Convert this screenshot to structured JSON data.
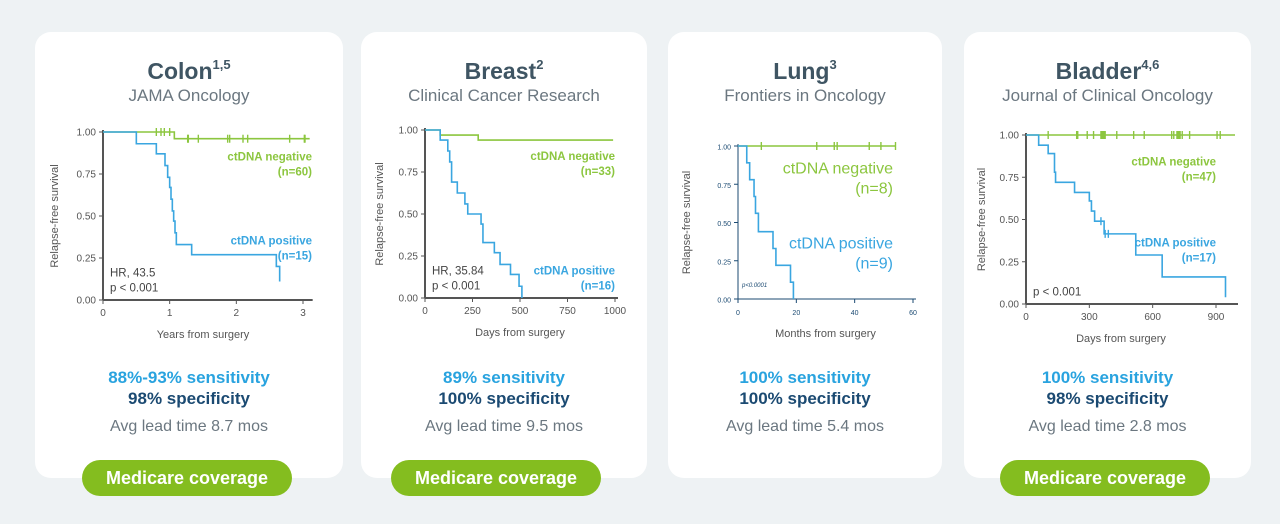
{
  "colors": {
    "negative": "#8cc63f",
    "positive": "#3aa6e0",
    "specificity": "#1b4a72",
    "badge": "#84bd1f",
    "title": "#3f5563"
  },
  "cards": [
    {
      "title": "Colon",
      "sup": "1,5",
      "journal": "JAMA Oncology",
      "sensitivity": "88%-93% sensitivity",
      "specificity": "98% specificity",
      "lead": "Avg lead time 8.7 mos",
      "badge": "Medicare coverage"
    },
    {
      "title": "Breast",
      "sup": "2",
      "journal": "Clinical Cancer Research",
      "sensitivity": "89% sensitivity",
      "specificity": "100% specificity",
      "lead": "Avg lead time 9.5 mos",
      "badge": "Medicare coverage"
    },
    {
      "title": "Lung",
      "sup": "3",
      "journal": "Frontiers in Oncology",
      "sensitivity": "100% sensitivity",
      "specificity": "100% specificity",
      "lead": "Avg lead time 5.4 mos"
    },
    {
      "title": "Bladder",
      "sup": "4,6",
      "journal": "Journal of Clinical Oncology",
      "sensitivity": "100% sensitivity",
      "specificity": "98% specificity",
      "lead": "Avg lead time 2.8 mos",
      "badge": "Medicare coverage"
    }
  ],
  "chart_data": [
    {
      "type": "line",
      "step": true,
      "xlabel": "Years from surgery",
      "ylabel": "Relapse-free survival",
      "xlim": [
        0,
        3.1
      ],
      "ylim": [
        0,
        1
      ],
      "xticks": [
        "0",
        "1",
        "2",
        "3"
      ],
      "xtick_values": [
        0,
        1,
        2,
        3
      ],
      "yticks": [
        "0.00",
        "0.25",
        "0.50",
        "0.75",
        "1.00"
      ],
      "annotation": [
        "HR, 43.5",
        "p < 0.001"
      ],
      "series": [
        {
          "name": "ctDNA negative",
          "n": "(n=60)",
          "color": "#8cc63f",
          "points": [
            [
              0,
              1
            ],
            [
              1.07,
              0.96
            ],
            [
              3.1,
              0.96
            ]
          ],
          "censored": [
            0.8,
            0.87,
            0.92,
            1.0,
            1.27,
            1.28,
            1.43,
            1.87,
            1.9,
            2.1,
            2.17,
            2.8,
            3.02,
            3.03
          ]
        },
        {
          "name": "ctDNA positive",
          "n": "(n=15)",
          "color": "#3aa6e0",
          "points": [
            [
              0,
              1
            ],
            [
              0.5,
              0.93
            ],
            [
              0.8,
              0.87
            ],
            [
              0.93,
              0.8
            ],
            [
              0.97,
              0.73
            ],
            [
              1.0,
              0.67
            ],
            [
              1.02,
              0.6
            ],
            [
              1.04,
              0.53
            ],
            [
              1.06,
              0.47
            ],
            [
              1.08,
              0.4
            ],
            [
              1.1,
              0.33
            ],
            [
              1.33,
              0.27
            ],
            [
              2.6,
              0.2
            ],
            [
              2.65,
              0.13
            ],
            [
              2.65,
              0.11
            ]
          ],
          "censored": []
        }
      ]
    },
    {
      "type": "line",
      "step": true,
      "xlabel": "Days from surgery",
      "ylabel": "Relapse-free survival",
      "xlim": [
        0,
        1000
      ],
      "ylim": [
        0,
        1
      ],
      "xticks": [
        "0",
        "250",
        "500",
        "750",
        "1000"
      ],
      "xtick_values": [
        0,
        250,
        500,
        750,
        1000
      ],
      "yticks": [
        "0.00",
        "0.25",
        "0.50",
        "0.75",
        "1.00"
      ],
      "annotation": [
        "HR, 35.84",
        "p < 0.001"
      ],
      "series": [
        {
          "name": "ctDNA negative",
          "n": "(n=33)",
          "color": "#8cc63f",
          "points": [
            [
              0,
              1
            ],
            [
              80,
              0.97
            ],
            [
              280,
              0.94
            ],
            [
              990,
              0.94
            ]
          ],
          "censored": []
        },
        {
          "name": "ctDNA positive",
          "n": "(n=16)",
          "color": "#3aa6e0",
          "points": [
            [
              0,
              1
            ],
            [
              80,
              0.94
            ],
            [
              120,
              0.875
            ],
            [
              130,
              0.81
            ],
            [
              140,
              0.69
            ],
            [
              170,
              0.625
            ],
            [
              210,
              0.56
            ],
            [
              225,
              0.5
            ],
            [
              295,
              0.44
            ],
            [
              305,
              0.33
            ],
            [
              365,
              0.27
            ],
            [
              395,
              0.2
            ],
            [
              450,
              0.14
            ],
            [
              495,
              0.07
            ],
            [
              510,
              0
            ]
          ],
          "censored": []
        }
      ]
    },
    {
      "type": "line",
      "step": true,
      "xlabel": "Months from surgery",
      "ylabel": "Relapse-free survival",
      "xlim": [
        0,
        60
      ],
      "ylim": [
        0,
        1
      ],
      "xticks": [
        "0",
        "20",
        "40",
        "60"
      ],
      "xtick_values": [
        0,
        20,
        40,
        60
      ],
      "yticks": [
        "0.00",
        "0.25",
        "0.50",
        "0.75",
        "1.00"
      ],
      "annotation": [
        "p<0.0001"
      ],
      "series": [
        {
          "name": "ctDNA negative",
          "n": "(n=8)",
          "color": "#8cc63f",
          "points": [
            [
              0,
              1
            ],
            [
              54,
              1
            ]
          ],
          "censored": [
            8,
            27,
            33,
            34,
            45,
            49,
            54
          ]
        },
        {
          "name": "ctDNA positive",
          "n": "(n=9)",
          "color": "#3aa6e0",
          "points": [
            [
              0,
              1
            ],
            [
              3,
              0.89
            ],
            [
              4,
              0.78
            ],
            [
              5.5,
              0.67
            ],
            [
              6,
              0.56
            ],
            [
              7,
              0.44
            ],
            [
              12,
              0.33
            ],
            [
              13,
              0.22
            ],
            [
              18,
              0.11
            ],
            [
              19,
              0
            ]
          ],
          "censored": []
        }
      ]
    },
    {
      "type": "line",
      "step": true,
      "xlabel": "Days from surgery",
      "ylabel": "Relapse-free survival",
      "xlim": [
        0,
        990
      ],
      "ylim": [
        0,
        1
      ],
      "xticks": [
        "0",
        "300",
        "600",
        "900"
      ],
      "xtick_values": [
        0,
        300,
        600,
        900
      ],
      "yticks": [
        "0.00",
        "0.25",
        "0.50",
        "0.75",
        "1.00"
      ],
      "annotation": [
        "p < 0.001"
      ],
      "series": [
        {
          "name": "ctDNA negative",
          "n": "(n=47)",
          "color": "#8cc63f",
          "points": [
            [
              0,
              1
            ],
            [
              990,
              1
            ]
          ],
          "censored": [
            105,
            240,
            245,
            290,
            320,
            355,
            360,
            365,
            370,
            375,
            430,
            510,
            560,
            690,
            700,
            715,
            720,
            725,
            730,
            740,
            775,
            905,
            920
          ]
        },
        {
          "name": "ctDNA positive",
          "n": "(n=17)",
          "color": "#3aa6e0",
          "points": [
            [
              0,
              1
            ],
            [
              60,
              0.94
            ],
            [
              105,
              0.89
            ],
            [
              135,
              0.78
            ],
            [
              140,
              0.72
            ],
            [
              230,
              0.66
            ],
            [
              300,
              0.61
            ],
            [
              310,
              0.55
            ],
            [
              325,
              0.49
            ],
            [
              370,
              0.415
            ],
            [
              520,
              0.29
            ],
            [
              645,
              0.16
            ],
            [
              945,
              0.04
            ]
          ],
          "censored": [
            355,
            375,
            390
          ]
        }
      ]
    }
  ]
}
